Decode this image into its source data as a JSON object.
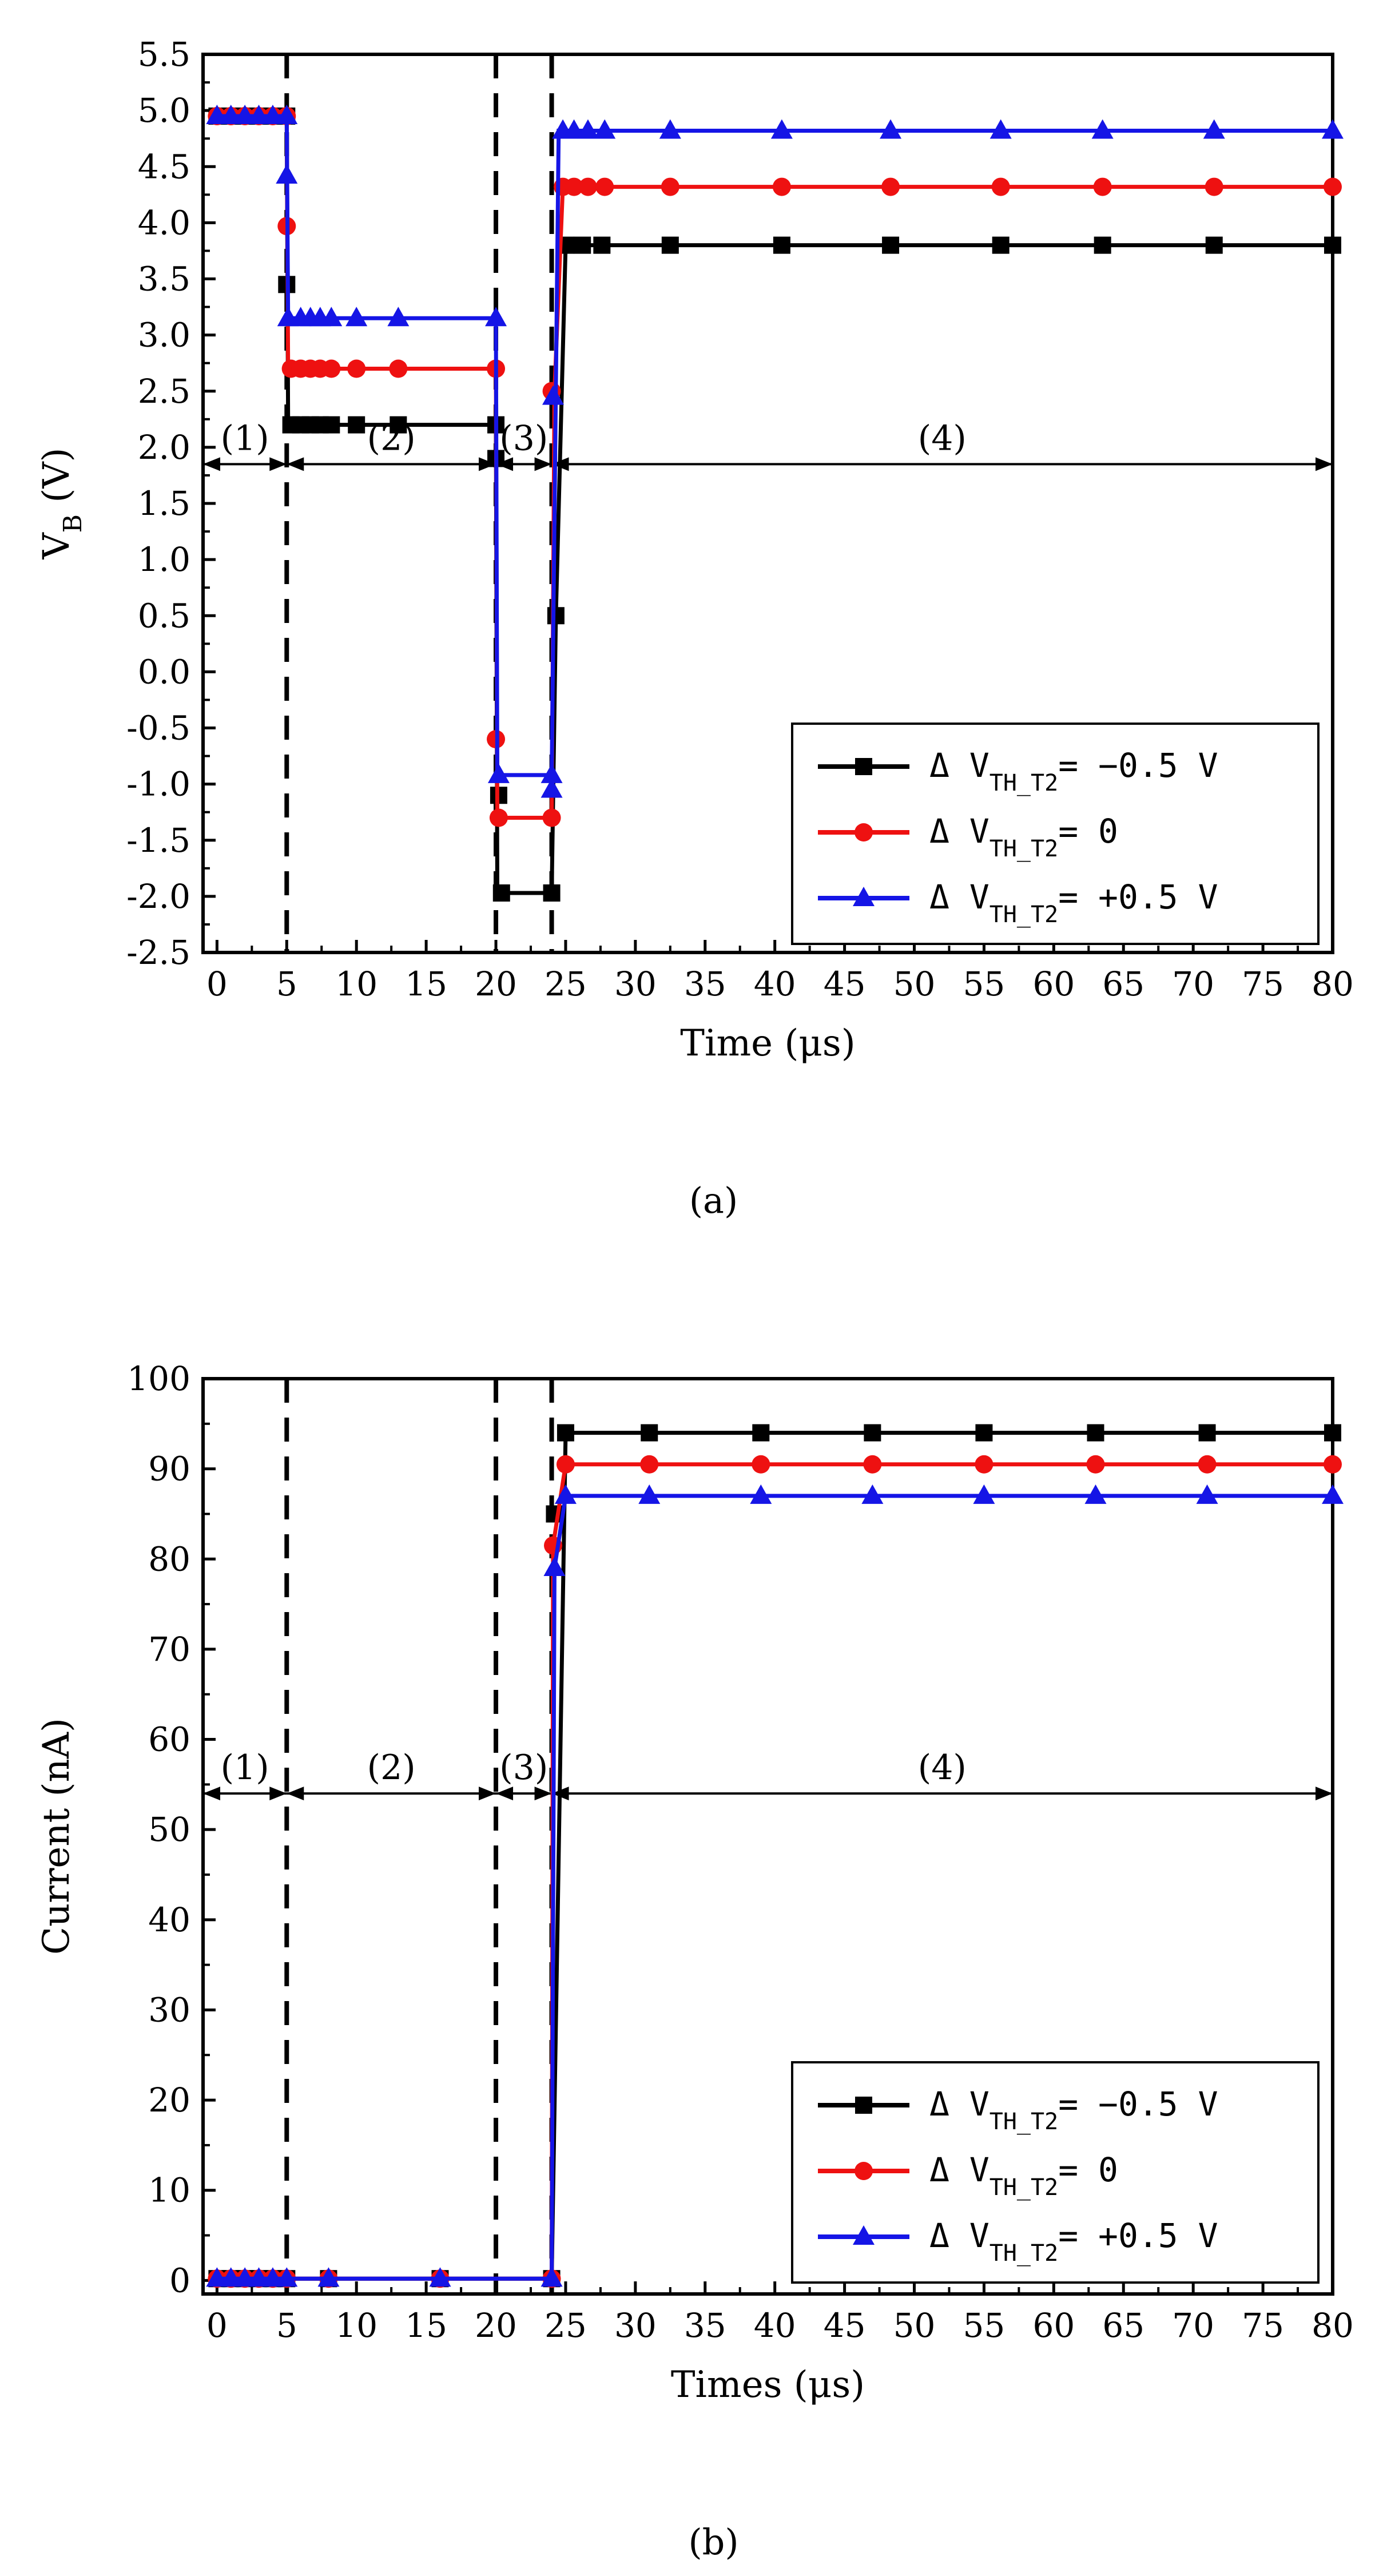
{
  "figure": {
    "panels": [
      {
        "caption_letter": "a",
        "caption": "(a)",
        "x_title": "Time (μs)",
        "y_title_main": "V",
        "y_title_sub": "B",
        "y_title_unit": " (V)",
        "region_labels": [
          "(1)",
          "(2)",
          "(3)",
          "(4)"
        ]
      },
      {
        "caption_letter": "b",
        "caption": "(b)",
        "x_title": "Times (μs)",
        "y_title_main": "Current (nA)",
        "y_title_sub": "",
        "y_title_unit": "",
        "region_labels": [
          "(1)",
          "(2)",
          "(3)",
          "(4)"
        ]
      }
    ]
  },
  "chart_data": [
    {
      "type": "line",
      "title": "",
      "xlabel": "Time (μs)",
      "ylabel": "V_B (V)",
      "xlim": [
        -1,
        80
      ],
      "ylim": [
        -2.5,
        5.5
      ],
      "x_ticks": [
        0,
        5,
        10,
        15,
        20,
        25,
        30,
        35,
        40,
        45,
        50,
        55,
        60,
        65,
        70,
        75,
        80
      ],
      "y_ticks": [
        -2.5,
        -2.0,
        -1.5,
        -1.0,
        -0.5,
        0.0,
        0.5,
        1.0,
        1.5,
        2.0,
        2.5,
        3.0,
        3.5,
        4.0,
        4.5,
        5.0,
        5.5
      ],
      "y_tick_labels": [
        "-2.5",
        "-2.0",
        "-1.5",
        "-1.0",
        "-0.5",
        "0.0",
        "0.5",
        "1.0",
        "1.5",
        "2.0",
        "2.5",
        "3.0",
        "3.5",
        "4.0",
        "4.5",
        "5.0",
        "5.5"
      ],
      "phase_boundaries": [
        5,
        20,
        24
      ],
      "region_arrow_y": 1.85,
      "region_spans": [
        [
          -1,
          5
        ],
        [
          5,
          20
        ],
        [
          20,
          24
        ],
        [
          24,
          80
        ]
      ],
      "legend_position": "bottom-right",
      "series": [
        {
          "name": "ΔV_TH_T2= -0.5 V",
          "legend_prefix": "Δ V",
          "legend_sub": "TH_T2",
          "legend_suffix": "= −0.5 V",
          "color": "#000000",
          "marker": "square",
          "line": [
            [
              0,
              4.95
            ],
            [
              5,
              4.95
            ],
            [
              5.1,
              2.2
            ],
            [
              20,
              2.2
            ],
            [
              20.1,
              -1.97
            ],
            [
              24,
              -1.97
            ],
            [
              24.3,
              0.5
            ],
            [
              25,
              3.8
            ],
            [
              80,
              3.8
            ]
          ],
          "markers": [
            [
              0,
              4.95
            ],
            [
              1,
              4.95
            ],
            [
              2,
              4.95
            ],
            [
              3,
              4.95
            ],
            [
              4,
              4.95
            ],
            [
              5,
              4.95
            ],
            [
              5,
              3.45
            ],
            [
              5.3,
              2.2
            ],
            [
              6,
              2.2
            ],
            [
              6.7,
              2.2
            ],
            [
              7.4,
              2.2
            ],
            [
              8.2,
              2.2
            ],
            [
              10,
              2.2
            ],
            [
              13,
              2.2
            ],
            [
              20,
              2.2
            ],
            [
              20,
              1.9
            ],
            [
              20.2,
              -1.1
            ],
            [
              20.4,
              -1.97
            ],
            [
              24,
              -1.97
            ],
            [
              24.3,
              0.5
            ],
            [
              25,
              3.8
            ],
            [
              26.2,
              3.8
            ],
            [
              27.6,
              3.8
            ],
            [
              32.5,
              3.8
            ],
            [
              40.5,
              3.8
            ],
            [
              48.3,
              3.8
            ],
            [
              56.2,
              3.8
            ],
            [
              63.5,
              3.8
            ],
            [
              71.5,
              3.8
            ],
            [
              80,
              3.8
            ]
          ]
        },
        {
          "name": "ΔV_TH_T2= 0",
          "legend_prefix": "Δ V",
          "legend_sub": "TH_T2",
          "legend_suffix": "= 0",
          "color": "#ee1111",
          "marker": "circle",
          "line": [
            [
              0,
              4.95
            ],
            [
              5,
              4.95
            ],
            [
              5.1,
              2.7
            ],
            [
              20,
              2.7
            ],
            [
              20.1,
              -1.3
            ],
            [
              24,
              -1.3
            ],
            [
              24.2,
              2.5
            ],
            [
              24.8,
              4.32
            ],
            [
              80,
              4.32
            ]
          ],
          "markers": [
            [
              0,
              4.95
            ],
            [
              1,
              4.95
            ],
            [
              2,
              4.95
            ],
            [
              3,
              4.95
            ],
            [
              4,
              4.95
            ],
            [
              5,
              4.95
            ],
            [
              5,
              3.97
            ],
            [
              5.3,
              2.7
            ],
            [
              6,
              2.7
            ],
            [
              6.7,
              2.7
            ],
            [
              7.4,
              2.7
            ],
            [
              8.2,
              2.7
            ],
            [
              10,
              2.7
            ],
            [
              13,
              2.7
            ],
            [
              20,
              2.7
            ],
            [
              20,
              -0.6
            ],
            [
              20.2,
              -1.3
            ],
            [
              24,
              -1.3
            ],
            [
              24,
              2.5
            ],
            [
              24.8,
              4.32
            ],
            [
              25.6,
              4.32
            ],
            [
              26.6,
              4.32
            ],
            [
              27.8,
              4.32
            ],
            [
              32.5,
              4.32
            ],
            [
              40.5,
              4.32
            ],
            [
              48.3,
              4.32
            ],
            [
              56.2,
              4.32
            ],
            [
              63.5,
              4.32
            ],
            [
              71.5,
              4.32
            ],
            [
              80,
              4.32
            ]
          ]
        },
        {
          "name": "ΔV_TH_T2= +0.5 V",
          "legend_prefix": "Δ V",
          "legend_sub": "TH_T2",
          "legend_suffix": "= +0.5 V",
          "color": "#1515e6",
          "marker": "triangle",
          "line": [
            [
              0,
              4.95
            ],
            [
              5,
              4.95
            ],
            [
              5.1,
              3.15
            ],
            [
              20,
              3.15
            ],
            [
              20.1,
              -0.92
            ],
            [
              24,
              -0.92
            ],
            [
              24.5,
              4.82
            ],
            [
              80,
              4.82
            ]
          ],
          "markers": [
            [
              0,
              4.95
            ],
            [
              1,
              4.95
            ],
            [
              2,
              4.95
            ],
            [
              3,
              4.95
            ],
            [
              4,
              4.95
            ],
            [
              5,
              4.95
            ],
            [
              5,
              4.42
            ],
            [
              5.1,
              3.15
            ],
            [
              6,
              3.15
            ],
            [
              6.7,
              3.15
            ],
            [
              7.4,
              3.15
            ],
            [
              8.2,
              3.15
            ],
            [
              10,
              3.15
            ],
            [
              13,
              3.15
            ],
            [
              20,
              3.15
            ],
            [
              20.2,
              -0.92
            ],
            [
              24,
              -0.92
            ],
            [
              24,
              -1.05
            ],
            [
              24.1,
              2.45
            ],
            [
              24.8,
              4.82
            ],
            [
              25.6,
              4.82
            ],
            [
              26.6,
              4.82
            ],
            [
              27.8,
              4.82
            ],
            [
              32.5,
              4.82
            ],
            [
              40.5,
              4.82
            ],
            [
              48.3,
              4.82
            ],
            [
              56.2,
              4.82
            ],
            [
              63.5,
              4.82
            ],
            [
              71.5,
              4.82
            ],
            [
              80,
              4.82
            ]
          ]
        }
      ]
    },
    {
      "type": "line",
      "title": "",
      "xlabel": "Times (μs)",
      "ylabel": "Current (nA)",
      "xlim": [
        -1,
        80
      ],
      "ylim": [
        -1.5,
        100
      ],
      "x_ticks": [
        0,
        5,
        10,
        15,
        20,
        25,
        30,
        35,
        40,
        45,
        50,
        55,
        60,
        65,
        70,
        75,
        80
      ],
      "y_ticks": [
        0,
        10,
        20,
        30,
        40,
        50,
        60,
        70,
        80,
        90,
        100
      ],
      "y_tick_labels": [
        "0",
        "10",
        "20",
        "30",
        "40",
        "50",
        "60",
        "70",
        "80",
        "90",
        "100"
      ],
      "phase_boundaries": [
        5,
        20,
        24
      ],
      "region_arrow_y": 54,
      "region_spans": [
        [
          -1,
          5
        ],
        [
          5,
          20
        ],
        [
          20,
          24
        ],
        [
          24,
          80
        ]
      ],
      "legend_position": "bottom-right",
      "series": [
        {
          "name": "ΔV_TH_T2= -0.5 V",
          "legend_prefix": "Δ V",
          "legend_sub": "TH_T2",
          "legend_suffix": "= −0.5 V",
          "color": "#000000",
          "marker": "square",
          "line": [
            [
              0,
              0.2
            ],
            [
              24,
              0.2
            ],
            [
              25,
              94
            ],
            [
              80,
              94
            ]
          ],
          "markers": [
            [
              0,
              0.2
            ],
            [
              1,
              0.2
            ],
            [
              2,
              0.2
            ],
            [
              3,
              0.2
            ],
            [
              4,
              0.2
            ],
            [
              5,
              0.2
            ],
            [
              8,
              0.2
            ],
            [
              16,
              0.2
            ],
            [
              24,
              0.2
            ],
            [
              24.2,
              85
            ],
            [
              25,
              94
            ],
            [
              31,
              94
            ],
            [
              39,
              94
            ],
            [
              47,
              94
            ],
            [
              55,
              94
            ],
            [
              63,
              94
            ],
            [
              71,
              94
            ],
            [
              80,
              94
            ]
          ]
        },
        {
          "name": "ΔV_TH_T2= 0",
          "legend_prefix": "Δ V",
          "legend_sub": "TH_T2",
          "legend_suffix": "= 0",
          "color": "#ee1111",
          "marker": "circle",
          "line": [
            [
              0,
              0.2
            ],
            [
              24,
              0.2
            ],
            [
              24.1,
              81.5
            ],
            [
              25,
              90.5
            ],
            [
              80,
              90.5
            ]
          ],
          "markers": [
            [
              0,
              0.2
            ],
            [
              1,
              0.2
            ],
            [
              2,
              0.2
            ],
            [
              3,
              0.2
            ],
            [
              4,
              0.2
            ],
            [
              5,
              0.2
            ],
            [
              8,
              0.2
            ],
            [
              16,
              0.2
            ],
            [
              24,
              0.2
            ],
            [
              24.1,
              81.5
            ],
            [
              25,
              90.5
            ],
            [
              31,
              90.5
            ],
            [
              39,
              90.5
            ],
            [
              47,
              90.5
            ],
            [
              55,
              90.5
            ],
            [
              63,
              90.5
            ],
            [
              71,
              90.5
            ],
            [
              80,
              90.5
            ]
          ]
        },
        {
          "name": "ΔV_TH_T2= +0.5 V",
          "legend_prefix": "Δ V",
          "legend_sub": "TH_T2",
          "legend_suffix": "= +0.5 V",
          "color": "#1515e6",
          "marker": "triangle",
          "line": [
            [
              0,
              0.2
            ],
            [
              24,
              0.2
            ],
            [
              24.2,
              79
            ],
            [
              25,
              87
            ],
            [
              80,
              87
            ]
          ],
          "markers": [
            [
              0,
              0.2
            ],
            [
              1,
              0.2
            ],
            [
              2,
              0.2
            ],
            [
              3,
              0.2
            ],
            [
              4,
              0.2
            ],
            [
              5,
              0.2
            ],
            [
              8,
              0.2
            ],
            [
              16,
              0.2
            ],
            [
              24,
              0.2
            ],
            [
              24.2,
              79
            ],
            [
              25,
              87
            ],
            [
              31,
              87
            ],
            [
              39,
              87
            ],
            [
              47,
              87
            ],
            [
              55,
              87
            ],
            [
              63,
              87
            ],
            [
              71,
              87
            ],
            [
              80,
              87
            ]
          ]
        }
      ]
    }
  ]
}
